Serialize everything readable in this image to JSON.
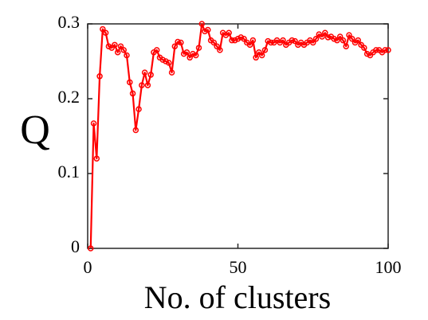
{
  "chart_data": {
    "type": "line",
    "x_label": "No. of clusters",
    "y_label": "Q",
    "x": [
      1,
      2,
      3,
      4,
      5,
      6,
      7,
      8,
      9,
      10,
      11,
      12,
      13,
      14,
      15,
      16,
      17,
      18,
      19,
      20,
      21,
      22,
      23,
      24,
      25,
      26,
      27,
      28,
      29,
      30,
      31,
      32,
      33,
      34,
      35,
      36,
      37,
      38,
      39,
      40,
      41,
      42,
      43,
      44,
      45,
      46,
      47,
      48,
      49,
      50,
      51,
      52,
      53,
      54,
      55,
      56,
      57,
      58,
      59,
      60,
      61,
      62,
      63,
      64,
      65,
      66,
      67,
      68,
      69,
      70,
      71,
      72,
      73,
      74,
      75,
      76,
      77,
      78,
      79,
      80,
      81,
      82,
      83,
      84,
      85,
      86,
      87,
      88,
      89,
      90,
      91,
      92,
      93,
      94,
      95,
      96,
      97,
      98,
      99,
      100
    ],
    "series": [
      {
        "color": "#ff0000",
        "values": [
          0,
          0.167,
          0.12,
          0.23,
          0.293,
          0.288,
          0.27,
          0.268,
          0.272,
          0.262,
          0.27,
          0.265,
          0.258,
          0.222,
          0.207,
          0.158,
          0.186,
          0.218,
          0.235,
          0.218,
          0.232,
          0.262,
          0.265,
          0.255,
          0.252,
          0.25,
          0.248,
          0.235,
          0.27,
          0.276,
          0.275,
          0.26,
          0.262,
          0.255,
          0.26,
          0.258,
          0.268,
          0.3,
          0.29,
          0.292,
          0.278,
          0.275,
          0.27,
          0.265,
          0.288,
          0.285,
          0.288,
          0.278,
          0.278,
          0.28,
          0.282,
          0.28,
          0.275,
          0.272,
          0.278,
          0.255,
          0.262,
          0.258,
          0.265,
          0.277,
          0.275,
          0.275,
          0.278,
          0.275,
          0.278,
          0.272,
          0.275,
          0.278,
          0.277,
          0.272,
          0.275,
          0.272,
          0.275,
          0.278,
          0.275,
          0.28,
          0.286,
          0.283,
          0.288,
          0.282,
          0.283,
          0.28,
          0.278,
          0.283,
          0.278,
          0.27,
          0.285,
          0.28,
          0.275,
          0.278,
          0.272,
          0.268,
          0.26,
          0.258,
          0.262,
          0.265,
          0.265,
          0.262,
          0.265,
          0.265
        ]
      }
    ],
    "xlim": [
      0,
      100
    ],
    "xticks": [
      0,
      50,
      100
    ],
    "ylim": [
      0,
      0.3
    ],
    "yticks": [
      0,
      0.1,
      0.2,
      0.3
    ],
    "grid": false
  }
}
